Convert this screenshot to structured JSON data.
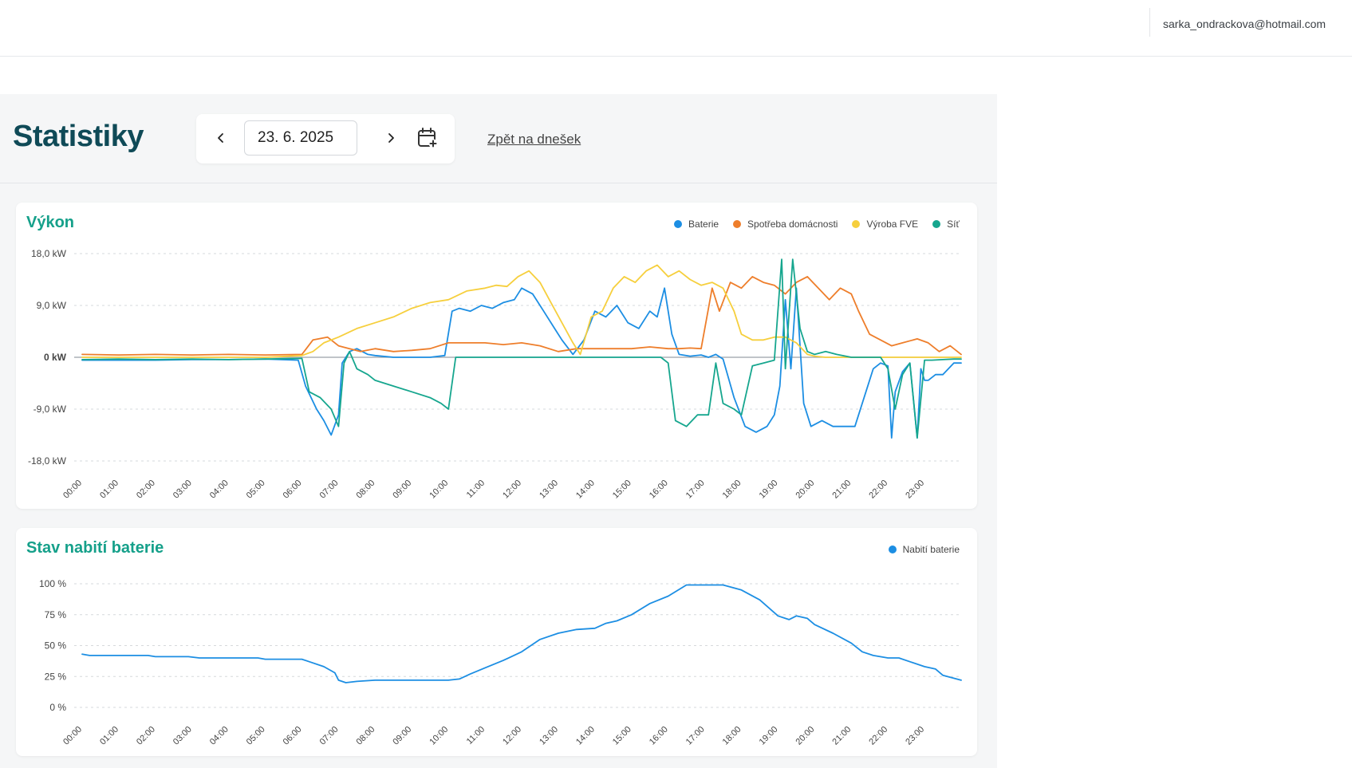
{
  "user": {
    "email": "sarka_ondrackova@hotmail.com"
  },
  "page": {
    "title": "Statistiky",
    "date_value": "23. 6. 2025",
    "back_link": "Zpět na dnešek"
  },
  "icons": {
    "prev": "chevron-left-icon",
    "next": "chevron-right-icon",
    "calendar": "calendar-plus-icon"
  },
  "colors": {
    "baterie": "#1c8ee3",
    "spotreba": "#ee7e2b",
    "vyroba": "#f6cf3d",
    "sit": "#16a68e",
    "title": "#0f4a57",
    "card_title": "#15a08a"
  },
  "chart_data": [
    {
      "type": "line",
      "title": "Výkon",
      "ylim": [
        -18,
        18
      ],
      "yticks": [
        18,
        9,
        0,
        -9,
        -18
      ],
      "ytick_labels": [
        "18,0 kW",
        "9,0 kW",
        "0 kW",
        "-9,0 kW",
        "-18,0 kW"
      ],
      "xlim": [
        0,
        24
      ],
      "xticks": [
        "00:00",
        "01:00",
        "02:00",
        "03:00",
        "04:00",
        "05:00",
        "06:00",
        "07:00",
        "08:00",
        "09:00",
        "10:00",
        "11:00",
        "12:00",
        "13:00",
        "14:00",
        "15:00",
        "16:00",
        "17:00",
        "18:00",
        "19:00",
        "20:00",
        "21:00",
        "22:00",
        "23:00"
      ],
      "grid": true,
      "legend_position": "top-right",
      "series": [
        {
          "name": "Baterie",
          "key": "baterie",
          "x": [
            0,
            1,
            2,
            3,
            4,
            5,
            5.9,
            6.1,
            6.4,
            6.6,
            6.8,
            7.0,
            7.1,
            7.3,
            7.5,
            7.8,
            8,
            8.5,
            9,
            9.5,
            9.9,
            10.1,
            10.3,
            10.6,
            10.9,
            11.2,
            11.5,
            11.8,
            12,
            12.3,
            12.6,
            12.9,
            13.1,
            13.4,
            13.7,
            14.0,
            14.3,
            14.6,
            14.9,
            15.2,
            15.5,
            15.7,
            15.9,
            16.1,
            16.3,
            16.6,
            16.9,
            17.1,
            17.3,
            17.5,
            17.8,
            18.1,
            18.4,
            18.7,
            18.9,
            19.05,
            19.2,
            19.35,
            19.5,
            19.7,
            19.9,
            20.2,
            20.5,
            20.8,
            21.1,
            21.4,
            21.6,
            21.8,
            22.0,
            22.1,
            22.2,
            22.4,
            22.6,
            22.8,
            22.9,
            23.0,
            23.1,
            23.3,
            23.5,
            23.8,
            24
          ],
          "y": [
            -0.5,
            -0.5,
            -0.5,
            -0.4,
            -0.4,
            -0.3,
            -0.5,
            -5,
            -9,
            -11,
            -13.5,
            -10,
            -1,
            1,
            1.5,
            0.5,
            0.3,
            0,
            0,
            0,
            0.3,
            8,
            8.5,
            8,
            9,
            8.5,
            9.5,
            10,
            12,
            11,
            8,
            5,
            3,
            0.5,
            3,
            8,
            7,
            9,
            6,
            5,
            8,
            7,
            12,
            4,
            0.5,
            0.2,
            0.4,
            0,
            0.5,
            -0.3,
            -7,
            -12,
            -13,
            -12,
            -10,
            -5,
            10,
            -2,
            12,
            -8,
            -12,
            -11,
            -12,
            -12,
            -12,
            -6,
            -2,
            -1,
            -1.5,
            -14,
            -6,
            -2.5,
            -1,
            -14,
            -2,
            -4,
            -4,
            -3,
            -3,
            -1,
            -1
          ]
        },
        {
          "name": "Spotřeba domácnosti",
          "key": "spotreba",
          "x": [
            0,
            1,
            2,
            3,
            4,
            5,
            6,
            6.3,
            6.7,
            7,
            7.3,
            7.6,
            8,
            8.5,
            9,
            9.5,
            10,
            10.5,
            11,
            11.5,
            12,
            12.5,
            13,
            13.5,
            14,
            14.5,
            15,
            15.5,
            16,
            16.3,
            16.6,
            16.9,
            17.2,
            17.4,
            17.7,
            18,
            18.3,
            18.6,
            18.9,
            19.2,
            19.5,
            19.8,
            20.1,
            20.4,
            20.7,
            21,
            21.2,
            21.5,
            21.8,
            22.1,
            22.4,
            22.8,
            23.1,
            23.4,
            23.7,
            24
          ],
          "y": [
            0.5,
            0.4,
            0.5,
            0.4,
            0.5,
            0.4,
            0.5,
            3,
            3.5,
            2,
            1.5,
            1,
            1.5,
            1,
            1.2,
            1.5,
            2.5,
            2.5,
            2.5,
            2.2,
            2.5,
            2,
            1,
            1.5,
            1.5,
            1.5,
            1.5,
            1.8,
            1.5,
            1.5,
            1.6,
            1.5,
            12,
            8,
            13,
            12,
            14,
            13,
            12.5,
            11,
            13,
            14,
            12,
            10,
            12,
            11,
            8,
            4,
            3,
            2,
            2.5,
            3.2,
            2.5,
            1,
            2,
            0.5
          ]
        },
        {
          "name": "Výroba FVE",
          "key": "vyroba",
          "x": [
            0,
            1,
            2,
            3,
            4,
            5,
            6,
            6.3,
            6.6,
            7,
            7.5,
            8,
            8.5,
            9,
            9.5,
            10,
            10.5,
            11,
            11.3,
            11.6,
            11.9,
            12.2,
            12.5,
            12.8,
            13.1,
            13.4,
            13.6,
            13.9,
            14.2,
            14.5,
            14.8,
            15.1,
            15.4,
            15.7,
            16,
            16.3,
            16.6,
            16.9,
            17.2,
            17.5,
            17.8,
            18.0,
            18.3,
            18.6,
            18.9,
            19.2,
            19.5,
            19.8,
            20.0,
            20.3,
            20.6,
            21,
            22,
            23,
            24
          ],
          "y": [
            0,
            0,
            0,
            0,
            0,
            0,
            0.3,
            1,
            2.5,
            3.5,
            5,
            6,
            7,
            8.5,
            9.5,
            10,
            11.5,
            12,
            12.5,
            12.3,
            14,
            15,
            13,
            9.5,
            6,
            2.5,
            0.5,
            7,
            8,
            12,
            14,
            13,
            15,
            16,
            14,
            15,
            13.5,
            12.5,
            13,
            12,
            8,
            4,
            3,
            3,
            3.5,
            3.5,
            2.5,
            0.5,
            0.2,
            0,
            0,
            0,
            0,
            0,
            0
          ]
        },
        {
          "name": "Síť",
          "key": "sit",
          "x": [
            0,
            1,
            2,
            3,
            4,
            5,
            6,
            6.2,
            6.5,
            6.8,
            7.0,
            7.15,
            7.3,
            7.5,
            7.8,
            8,
            8.5,
            9,
            9.5,
            9.8,
            10,
            10.2,
            10.5,
            11,
            12,
            13,
            14,
            15,
            15.8,
            16.0,
            16.2,
            16.5,
            16.8,
            17.1,
            17.3,
            17.5,
            17.8,
            18.0,
            18.3,
            18.6,
            18.9,
            19.1,
            19.2,
            19.4,
            19.6,
            19.8,
            20.0,
            20.3,
            20.6,
            21,
            21.4,
            21.8,
            22.0,
            22.2,
            22.4,
            22.6,
            22.8,
            23.0,
            23.2,
            23.5,
            23.8,
            24
          ],
          "y": [
            -0.4,
            -0.3,
            -0.4,
            -0.3,
            -0.4,
            -0.3,
            -0.2,
            -6,
            -7,
            -9,
            -12,
            -1,
            1,
            -2,
            -3,
            -4,
            -5,
            -6,
            -7,
            -8,
            -9,
            0,
            0,
            0,
            0,
            0,
            0,
            0,
            0,
            -1,
            -11,
            -12,
            -10,
            -10,
            -1,
            -8,
            -9,
            -10,
            -1.5,
            -1,
            -0.5,
            17,
            -2,
            17,
            5,
            1,
            0.5,
            1,
            0.5,
            0,
            0,
            0,
            -2,
            -9,
            -3,
            -1,
            -14,
            -0.5,
            -0.5,
            -0.4,
            -0.3,
            -0.3
          ]
        }
      ]
    },
    {
      "type": "line",
      "title": "Stav nabití baterie",
      "ylim": [
        0,
        100
      ],
      "yticks": [
        100,
        75,
        50,
        25,
        0
      ],
      "ytick_labels": [
        "100 %",
        "75 %",
        "50 %",
        "25 %",
        "0 %"
      ],
      "xlim": [
        0,
        24
      ],
      "xticks": [
        "00:00",
        "01:00",
        "02:00",
        "03:00",
        "04:00",
        "05:00",
        "06:00",
        "07:00",
        "08:00",
        "09:00",
        "10:00",
        "11:00",
        "12:00",
        "13:00",
        "14:00",
        "15:00",
        "16:00",
        "17:00",
        "18:00",
        "19:00",
        "20:00",
        "21:00",
        "22:00",
        "23:00"
      ],
      "grid": true,
      "legend_position": "top-right",
      "series": [
        {
          "name": "Nabití baterie",
          "key": "baterie",
          "x": [
            0,
            0.2,
            1,
            1.8,
            2,
            2.9,
            3.2,
            4,
            4.8,
            5,
            6,
            6.2,
            6.6,
            6.9,
            7,
            7.2,
            7.5,
            8,
            9,
            10,
            10.3,
            10.6,
            11,
            11.5,
            12,
            12.5,
            13,
            13.5,
            14,
            14.3,
            14.6,
            15,
            15.5,
            16,
            16.5,
            17,
            17.5,
            18,
            18.5,
            19,
            19.3,
            19.5,
            19.8,
            20,
            20.5,
            21,
            21.3,
            21.6,
            22,
            22.3,
            22.6,
            23,
            23.3,
            23.5,
            24
          ],
          "y": [
            43,
            42,
            42,
            42,
            41,
            41,
            40,
            40,
            40,
            39,
            39,
            37,
            33,
            28,
            22,
            20,
            21,
            22,
            22,
            22,
            23,
            27,
            32,
            38,
            45,
            55,
            60,
            63,
            64,
            68,
            70,
            75,
            84,
            90,
            99,
            99,
            99,
            95,
            87,
            74,
            71,
            74,
            72,
            67,
            60,
            52,
            45,
            42,
            40,
            40,
            37,
            33,
            31,
            26,
            22
          ]
        }
      ]
    }
  ]
}
